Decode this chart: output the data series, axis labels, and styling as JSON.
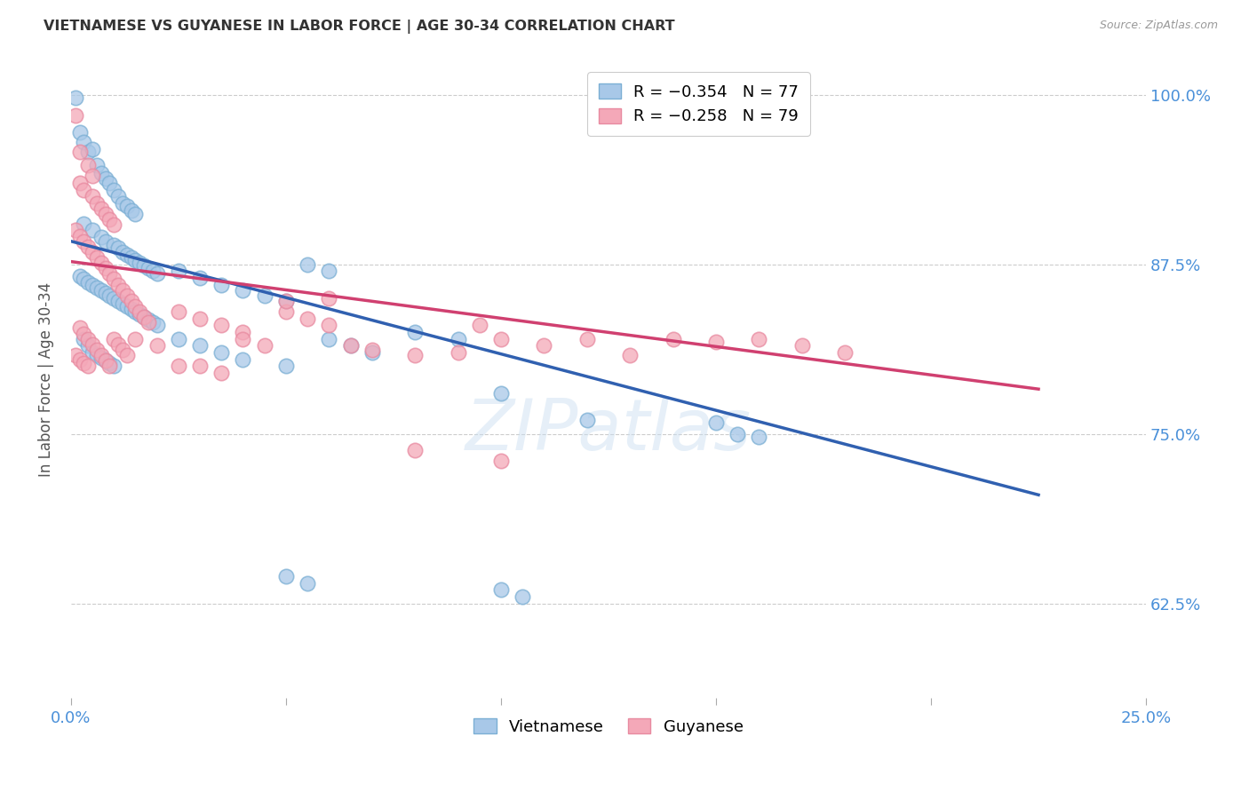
{
  "title": "VIETNAMESE VS GUYANESE IN LABOR FORCE | AGE 30-34 CORRELATION CHART",
  "source": "Source: ZipAtlas.com",
  "ylabel": "In Labor Force | Age 30-34",
  "x_min": 0.0,
  "x_max": 0.25,
  "y_min": 0.555,
  "y_max": 1.025,
  "x_ticks": [
    0.0,
    0.05,
    0.1,
    0.15,
    0.2,
    0.25
  ],
  "x_tick_labels": [
    "0.0%",
    "",
    "",
    "",
    "",
    "25.0%"
  ],
  "y_ticks": [
    0.625,
    0.75,
    0.875,
    1.0
  ],
  "y_tick_labels": [
    "62.5%",
    "75.0%",
    "87.5%",
    "100.0%"
  ],
  "blue_color": "#a8c8e8",
  "pink_color": "#f4a8b8",
  "blue_edge_color": "#7bafd4",
  "pink_edge_color": "#e88aa0",
  "blue_line_color": "#3060b0",
  "pink_line_color": "#d04070",
  "watermark": "ZIPatlas",
  "blue_line_x0": 0.0,
  "blue_line_y0": 0.892,
  "blue_line_x1": 0.225,
  "blue_line_y1": 0.705,
  "pink_line_x0": 0.0,
  "pink_line_y0": 0.877,
  "pink_line_x1": 0.225,
  "pink_line_y1": 0.783,
  "blue_points": [
    [
      0.001,
      0.998
    ],
    [
      0.002,
      0.972
    ],
    [
      0.003,
      0.965
    ],
    [
      0.004,
      0.958
    ],
    [
      0.005,
      0.96
    ],
    [
      0.006,
      0.948
    ],
    [
      0.007,
      0.942
    ],
    [
      0.008,
      0.938
    ],
    [
      0.009,
      0.935
    ],
    [
      0.01,
      0.93
    ],
    [
      0.011,
      0.925
    ],
    [
      0.012,
      0.92
    ],
    [
      0.013,
      0.918
    ],
    [
      0.014,
      0.915
    ],
    [
      0.015,
      0.912
    ],
    [
      0.003,
      0.905
    ],
    [
      0.005,
      0.9
    ],
    [
      0.007,
      0.895
    ],
    [
      0.008,
      0.892
    ],
    [
      0.01,
      0.889
    ],
    [
      0.011,
      0.887
    ],
    [
      0.012,
      0.884
    ],
    [
      0.013,
      0.882
    ],
    [
      0.014,
      0.88
    ],
    [
      0.015,
      0.878
    ],
    [
      0.016,
      0.876
    ],
    [
      0.017,
      0.874
    ],
    [
      0.018,
      0.872
    ],
    [
      0.019,
      0.87
    ],
    [
      0.02,
      0.868
    ],
    [
      0.002,
      0.866
    ],
    [
      0.003,
      0.864
    ],
    [
      0.004,
      0.862
    ],
    [
      0.005,
      0.86
    ],
    [
      0.006,
      0.858
    ],
    [
      0.007,
      0.856
    ],
    [
      0.008,
      0.854
    ],
    [
      0.009,
      0.852
    ],
    [
      0.01,
      0.85
    ],
    [
      0.011,
      0.848
    ],
    [
      0.012,
      0.846
    ],
    [
      0.013,
      0.844
    ],
    [
      0.014,
      0.842
    ],
    [
      0.015,
      0.84
    ],
    [
      0.016,
      0.838
    ],
    [
      0.017,
      0.836
    ],
    [
      0.018,
      0.834
    ],
    [
      0.019,
      0.832
    ],
    [
      0.02,
      0.83
    ],
    [
      0.025,
      0.87
    ],
    [
      0.03,
      0.865
    ],
    [
      0.035,
      0.86
    ],
    [
      0.04,
      0.856
    ],
    [
      0.045,
      0.852
    ],
    [
      0.05,
      0.848
    ],
    [
      0.055,
      0.875
    ],
    [
      0.06,
      0.87
    ],
    [
      0.025,
      0.82
    ],
    [
      0.03,
      0.815
    ],
    [
      0.035,
      0.81
    ],
    [
      0.04,
      0.805
    ],
    [
      0.05,
      0.8
    ],
    [
      0.06,
      0.82
    ],
    [
      0.065,
      0.815
    ],
    [
      0.07,
      0.81
    ],
    [
      0.08,
      0.825
    ],
    [
      0.09,
      0.82
    ],
    [
      0.003,
      0.82
    ],
    [
      0.004,
      0.815
    ],
    [
      0.005,
      0.81
    ],
    [
      0.006,
      0.808
    ],
    [
      0.007,
      0.806
    ],
    [
      0.008,
      0.804
    ],
    [
      0.009,
      0.802
    ],
    [
      0.01,
      0.8
    ],
    [
      0.1,
      0.78
    ],
    [
      0.12,
      0.76
    ],
    [
      0.15,
      0.758
    ],
    [
      0.155,
      0.75
    ],
    [
      0.16,
      0.748
    ],
    [
      0.05,
      0.645
    ],
    [
      0.055,
      0.64
    ],
    [
      0.1,
      0.635
    ],
    [
      0.105,
      0.63
    ]
  ],
  "pink_points": [
    [
      0.001,
      0.985
    ],
    [
      0.002,
      0.958
    ],
    [
      0.004,
      0.948
    ],
    [
      0.005,
      0.94
    ],
    [
      0.002,
      0.935
    ],
    [
      0.003,
      0.93
    ],
    [
      0.005,
      0.925
    ],
    [
      0.006,
      0.92
    ],
    [
      0.007,
      0.916
    ],
    [
      0.008,
      0.912
    ],
    [
      0.009,
      0.908
    ],
    [
      0.01,
      0.904
    ],
    [
      0.001,
      0.9
    ],
    [
      0.002,
      0.896
    ],
    [
      0.003,
      0.892
    ],
    [
      0.004,
      0.888
    ],
    [
      0.005,
      0.884
    ],
    [
      0.006,
      0.88
    ],
    [
      0.007,
      0.876
    ],
    [
      0.008,
      0.872
    ],
    [
      0.009,
      0.868
    ],
    [
      0.01,
      0.864
    ],
    [
      0.011,
      0.86
    ],
    [
      0.012,
      0.856
    ],
    [
      0.013,
      0.852
    ],
    [
      0.014,
      0.848
    ],
    [
      0.015,
      0.844
    ],
    [
      0.016,
      0.84
    ],
    [
      0.017,
      0.836
    ],
    [
      0.018,
      0.832
    ],
    [
      0.002,
      0.828
    ],
    [
      0.003,
      0.824
    ],
    [
      0.004,
      0.82
    ],
    [
      0.005,
      0.816
    ],
    [
      0.006,
      0.812
    ],
    [
      0.007,
      0.808
    ],
    [
      0.008,
      0.804
    ],
    [
      0.009,
      0.8
    ],
    [
      0.01,
      0.82
    ],
    [
      0.011,
      0.816
    ],
    [
      0.012,
      0.812
    ],
    [
      0.013,
      0.808
    ],
    [
      0.015,
      0.82
    ],
    [
      0.02,
      0.815
    ],
    [
      0.025,
      0.84
    ],
    [
      0.03,
      0.835
    ],
    [
      0.035,
      0.83
    ],
    [
      0.04,
      0.825
    ],
    [
      0.025,
      0.8
    ],
    [
      0.03,
      0.8
    ],
    [
      0.035,
      0.795
    ],
    [
      0.04,
      0.82
    ],
    [
      0.045,
      0.815
    ],
    [
      0.05,
      0.84
    ],
    [
      0.055,
      0.835
    ],
    [
      0.06,
      0.83
    ],
    [
      0.065,
      0.815
    ],
    [
      0.07,
      0.812
    ],
    [
      0.08,
      0.808
    ],
    [
      0.09,
      0.81
    ],
    [
      0.001,
      0.808
    ],
    [
      0.002,
      0.805
    ],
    [
      0.003,
      0.802
    ],
    [
      0.004,
      0.8
    ],
    [
      0.095,
      0.83
    ],
    [
      0.1,
      0.82
    ],
    [
      0.11,
      0.815
    ],
    [
      0.12,
      0.82
    ],
    [
      0.13,
      0.808
    ],
    [
      0.14,
      0.82
    ],
    [
      0.15,
      0.818
    ],
    [
      0.16,
      0.82
    ],
    [
      0.17,
      0.815
    ],
    [
      0.18,
      0.81
    ],
    [
      0.08,
      0.738
    ],
    [
      0.1,
      0.73
    ],
    [
      0.05,
      0.848
    ],
    [
      0.06,
      0.85
    ]
  ]
}
